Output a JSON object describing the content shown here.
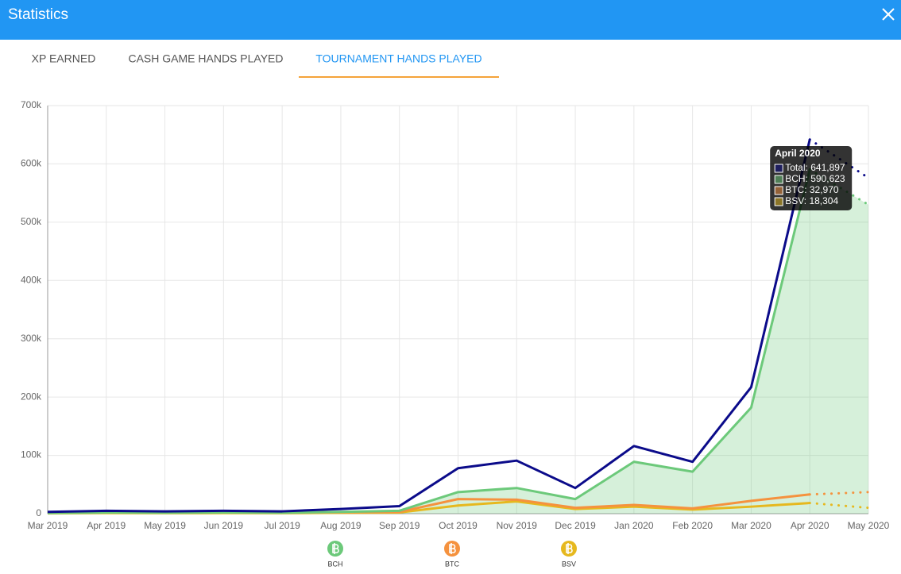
{
  "header": {
    "title": "Statistics"
  },
  "tabs": [
    "XP EARNED",
    "CASH GAME HANDS PLAYED",
    "TOURNAMENT HANDS PLAYED"
  ],
  "active_tab": 2,
  "chart_data": {
    "type": "line",
    "categories": [
      "Mar 2019",
      "Apr 2019",
      "May 2019",
      "Jun 2019",
      "Jul 2019",
      "Aug 2019",
      "Sep 2019",
      "Oct 2019",
      "Nov 2019",
      "Dec 2019",
      "Jan 2020",
      "Feb 2020",
      "Mar 2020",
      "Apr 2020",
      "May 2020"
    ],
    "dotted_after": "Apr 2020",
    "series": [
      {
        "name": "Total",
        "color": "#0b0b8a",
        "legend": false,
        "values": [
          3000,
          5000,
          4000,
          5000,
          4000,
          8000,
          13000,
          78000,
          91000,
          44000,
          116000,
          89000,
          217000,
          641897,
          576000
        ]
      },
      {
        "name": "BCH",
        "color": "#6cc97a",
        "fill": true,
        "values": [
          1000,
          2000,
          1500,
          2000,
          1500,
          3000,
          5000,
          37000,
          44000,
          25000,
          89000,
          72000,
          182000,
          590623,
          530000
        ]
      },
      {
        "name": "BTC",
        "color": "#f5923e",
        "values": [
          1000,
          2000,
          1500,
          2000,
          1500,
          2500,
          3000,
          25000,
          24000,
          10000,
          15000,
          9000,
          22000,
          32970,
          37000
        ]
      },
      {
        "name": "BSV",
        "color": "#e6b81e",
        "values": [
          500,
          1000,
          800,
          1000,
          800,
          1500,
          2000,
          14000,
          21000,
          8000,
          12000,
          7000,
          12000,
          18304,
          10000
        ]
      }
    ],
    "ylim": [
      0,
      700000
    ],
    "yticks": [
      {
        "value": 0,
        "label": "0"
      },
      {
        "value": 100000,
        "label": "100k"
      },
      {
        "value": 200000,
        "label": "200k"
      },
      {
        "value": 300000,
        "label": "300k"
      },
      {
        "value": 400000,
        "label": "400k"
      },
      {
        "value": 500000,
        "label": "500k"
      },
      {
        "value": 600000,
        "label": "600k"
      },
      {
        "value": 700000,
        "label": "700k"
      }
    ],
    "grid": true,
    "tooltip": {
      "title": "April 2020",
      "items": [
        "Total: 641,897",
        "BCH: 590,623",
        "BTC: 32,970",
        "BSV: 18,304"
      ]
    }
  }
}
